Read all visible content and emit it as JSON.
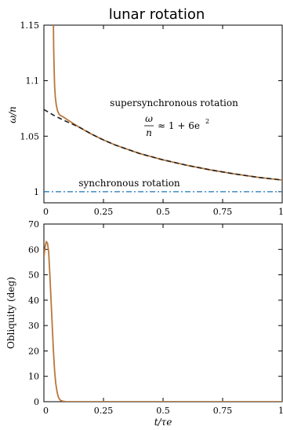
{
  "figure_title": "lunar rotation",
  "colors": {
    "main_curve": "#b8773a",
    "approx_curve": "#222222",
    "synchronous_line": "#1f77b4",
    "axes": "#000000",
    "background": "#ffffff"
  },
  "chart_data": [
    {
      "type": "line",
      "title": "",
      "xlabel": "",
      "ylabel": "ω/n",
      "xlim": [
        0,
        1
      ],
      "ylim": [
        0.99,
        1.15
      ],
      "x_ticks": [
        0,
        0.25,
        0.5,
        0.75,
        1
      ],
      "x_tick_labels": [
        "0",
        "0.25",
        "0.5",
        "0.75",
        "1"
      ],
      "y_ticks": [
        1,
        1.05,
        1.1,
        1.15
      ],
      "y_tick_labels": [
        "1",
        "1.05",
        "1.1",
        "1.15"
      ],
      "grid": false,
      "annotations": {
        "supersynchronous_label": "supersynchronous rotation",
        "formula_numerator": "ω",
        "formula_denominator": "n",
        "formula_rhs": "≈ 1 + 6e",
        "formula_exponent": "2",
        "synchronous_label": "synchronous rotation"
      },
      "series": [
        {
          "style": "solid",
          "x": [
            0.04,
            0.041,
            0.043,
            0.045,
            0.048,
            0.052,
            0.057,
            0.063,
            0.07,
            0.08,
            0.1,
            0.15,
            0.2,
            0.25,
            0.3,
            0.4,
            0.5,
            0.6,
            0.7,
            0.8,
            0.9,
            1.0
          ],
          "y": [
            1.15,
            1.13,
            1.11,
            1.095,
            1.085,
            1.078,
            1.073,
            1.07,
            1.0685,
            1.0675,
            1.0646,
            1.0578,
            1.0518,
            1.0466,
            1.042,
            1.0345,
            1.0287,
            1.0238,
            1.0196,
            1.016,
            1.0129,
            1.0105
          ]
        },
        {
          "style": "dashed",
          "x": [
            0.0,
            0.02,
            0.04,
            0.06,
            0.08,
            0.1,
            0.15,
            0.2,
            0.25,
            0.3,
            0.4,
            0.5,
            0.6,
            0.7,
            0.8,
            0.9,
            1.0
          ],
          "y": [
            1.074,
            1.0715,
            1.069,
            1.0668,
            1.0647,
            1.0627,
            1.058,
            1.0519,
            1.0466,
            1.042,
            1.0345,
            1.0287,
            1.0238,
            1.0196,
            1.016,
            1.0129,
            1.0105
          ]
        },
        {
          "style": "dashdot",
          "x": [
            0,
            1
          ],
          "y": [
            1.0,
            1.0
          ]
        }
      ]
    },
    {
      "type": "line",
      "title": "",
      "xlabel": "t/τe",
      "ylabel": "Obliquity (deg)",
      "xlim": [
        0,
        1
      ],
      "ylim": [
        0,
        70
      ],
      "x_ticks": [
        0,
        0.25,
        0.5,
        0.75,
        1
      ],
      "x_tick_labels": [
        "0",
        "0.25",
        "0.5",
        "0.75",
        "1"
      ],
      "y_ticks": [
        0,
        10,
        20,
        30,
        40,
        50,
        60,
        70
      ],
      "y_tick_labels": [
        "0",
        "10",
        "20",
        "30",
        "40",
        "50",
        "60",
        "70"
      ],
      "grid": false,
      "series": [
        {
          "style": "solid",
          "x": [
            0.0,
            0.005,
            0.01,
            0.015,
            0.02,
            0.025,
            0.03,
            0.035,
            0.04,
            0.045,
            0.05,
            0.055,
            0.06,
            0.065,
            0.07,
            0.08,
            0.09,
            0.1,
            0.12,
            0.15,
            0.2,
            0.3,
            0.5,
            0.75,
            1.0
          ],
          "y": [
            57,
            61,
            63,
            62.5,
            59,
            50,
            40,
            30,
            20,
            12,
            7,
            4,
            2,
            1,
            0.5,
            0.2,
            0.05,
            0,
            0,
            0,
            0,
            0,
            0,
            0,
            0
          ]
        }
      ]
    }
  ]
}
